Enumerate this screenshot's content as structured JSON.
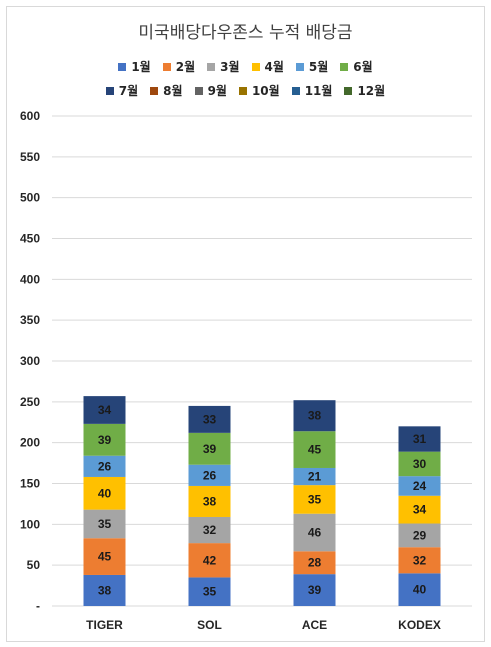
{
  "chart_data": {
    "type": "bar",
    "stacked": true,
    "title": "미국배당다우존스 누적 배당금",
    "categories": [
      "TIGER",
      "SOL",
      "ACE",
      "KODEX"
    ],
    "series": [
      {
        "name": "1월",
        "color": "#4472c4",
        "values": [
          38,
          35,
          39,
          40
        ]
      },
      {
        "name": "2월",
        "color": "#ed7d31",
        "values": [
          45,
          42,
          28,
          32
        ]
      },
      {
        "name": "3월",
        "color": "#a5a5a5",
        "values": [
          35,
          32,
          46,
          29
        ]
      },
      {
        "name": "4월",
        "color": "#ffc000",
        "values": [
          40,
          38,
          35,
          34
        ]
      },
      {
        "name": "5월",
        "color": "#5b9bd5",
        "values": [
          26,
          26,
          21,
          24
        ]
      },
      {
        "name": "6월",
        "color": "#70ad47",
        "values": [
          39,
          39,
          45,
          30
        ]
      },
      {
        "name": "7월",
        "color": "#264478",
        "values": [
          34,
          33,
          38,
          31
        ]
      },
      {
        "name": "8월",
        "color": "#9e480e",
        "values": [
          null,
          null,
          null,
          null
        ]
      },
      {
        "name": "9월",
        "color": "#636363",
        "values": [
          null,
          null,
          null,
          null
        ]
      },
      {
        "name": "10월",
        "color": "#997300",
        "values": [
          null,
          null,
          null,
          null
        ]
      },
      {
        "name": "11월",
        "color": "#255e91",
        "values": [
          null,
          null,
          null,
          null
        ]
      },
      {
        "name": "12월",
        "color": "#43682b",
        "values": [
          null,
          null,
          null,
          null
        ]
      }
    ],
    "ylim": [
      0,
      600
    ],
    "yticks": [
      "-",
      "50",
      "100",
      "150",
      "200",
      "250",
      "300",
      "350",
      "400",
      "450",
      "500",
      "550",
      "600"
    ],
    "grid": true,
    "legend_position": "top"
  }
}
